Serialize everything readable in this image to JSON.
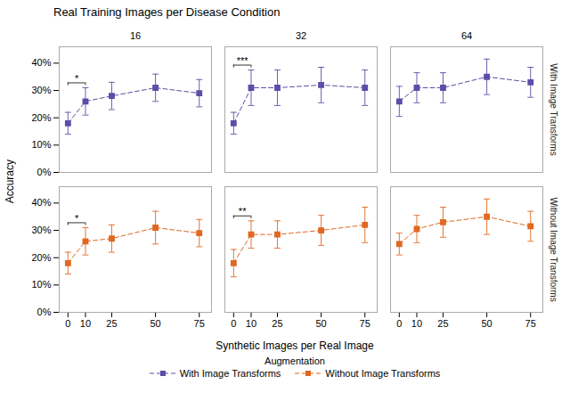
{
  "chart_data": {
    "type": "line",
    "title": "Real Training Images per Disease Condition",
    "xlabel": "Synthetic Images per Real Image",
    "ylabel": "Accuracy",
    "x": [
      0,
      10,
      25,
      50,
      75
    ],
    "xlim": [
      -5,
      82
    ],
    "xticks": [
      0,
      10,
      25,
      50,
      75
    ],
    "ylim": [
      0.0,
      0.46
    ],
    "yticks": [
      {
        "value": 0.0,
        "label": "0%"
      },
      {
        "value": 0.1,
        "label": "10%"
      },
      {
        "value": 0.2,
        "label": "20%"
      },
      {
        "value": 0.3,
        "label": "30%"
      },
      {
        "value": 0.4,
        "label": "40%"
      }
    ],
    "grid": false,
    "legend": "bottom",
    "legend_title": "Augmentation",
    "columns": [
      "16",
      "32",
      "64"
    ],
    "series": [
      {
        "name": "With Image Transforms",
        "color": "#5B4EA8",
        "marker": "square",
        "line_style": "dashed",
        "panels": [
          {
            "column": "16",
            "values": [
              0.18,
              0.26,
              0.28,
              0.31,
              0.29
            ],
            "errors": [
              0.04,
              0.05,
              0.05,
              0.05,
              0.05
            ],
            "annotation": {
              "text": "*",
              "x": [
                0,
                10
              ]
            }
          },
          {
            "column": "32",
            "values": [
              0.18,
              0.31,
              0.31,
              0.32,
              0.31
            ],
            "errors": [
              0.04,
              0.065,
              0.065,
              0.065,
              0.065
            ],
            "annotation": {
              "text": "***",
              "x": [
                0,
                10
              ]
            }
          },
          {
            "column": "64",
            "values": [
              0.26,
              0.31,
              0.31,
              0.35,
              0.33
            ],
            "errors": [
              0.055,
              0.055,
              0.055,
              0.065,
              0.055
            ]
          }
        ]
      },
      {
        "name": "Without Image Transforms",
        "color": "#E06820",
        "marker": "square",
        "line_style": "dashed",
        "panels": [
          {
            "column": "16",
            "values": [
              0.18,
              0.26,
              0.27,
              0.31,
              0.29
            ],
            "errors": [
              0.04,
              0.05,
              0.05,
              0.06,
              0.05
            ],
            "annotation": {
              "text": "*",
              "x": [
                0,
                10
              ]
            }
          },
          {
            "column": "32",
            "values": [
              0.18,
              0.285,
              0.285,
              0.3,
              0.32
            ],
            "errors": [
              0.05,
              0.05,
              0.05,
              0.055,
              0.065
            ],
            "annotation": {
              "text": "**",
              "x": [
                0,
                10
              ]
            }
          },
          {
            "column": "64",
            "values": [
              0.25,
              0.305,
              0.33,
              0.35,
              0.315
            ],
            "errors": [
              0.04,
              0.05,
              0.055,
              0.065,
              0.055
            ]
          }
        ]
      }
    ]
  }
}
